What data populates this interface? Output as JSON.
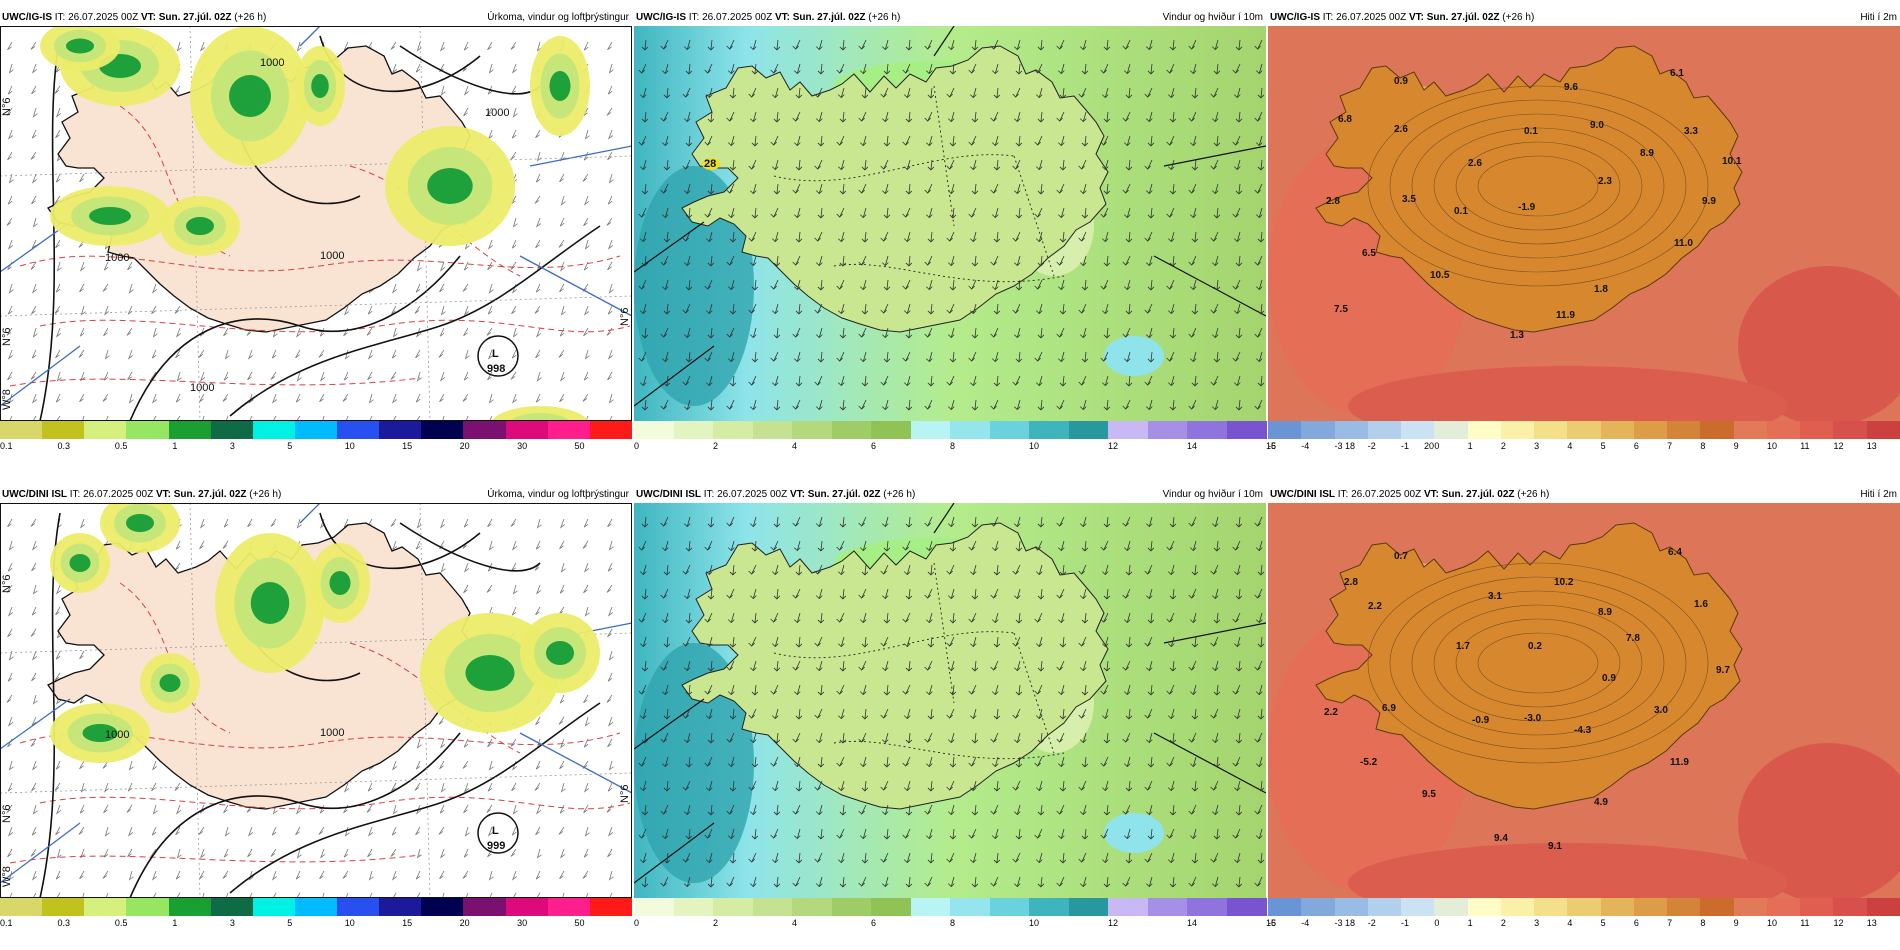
{
  "rows": [
    {
      "model_bold": "UWC/IG-IS",
      "it_label": "IT:",
      "it_value": "26.07.2025 00Z",
      "vt_label": "VT:",
      "vt_value": "Sun. 27.júl. 02Z",
      "lead": "(+26 h)",
      "precip_title": "Úrkoma, vindur og loftþrýstingur",
      "wind_title": "Vindur og hviður í 10m",
      "temp_title": "Hiti í 2m",
      "low_label": "L",
      "low_pressure": "998",
      "isobar_labels": [
        "1000",
        "1000",
        "1000",
        "1000",
        "1000"
      ],
      "lon_labels": [
        "N°6",
        "N°6",
        "N°6",
        "W°8"
      ],
      "wind_gust_marker": "28",
      "temps": [
        "6.1",
        "0.9",
        "9.6",
        "6.8",
        "2.6",
        "0.1",
        "9.0",
        "3.3",
        "8.9",
        "10.1",
        "2.6",
        "2.3",
        "2.8",
        "3.5",
        "0.1",
        "-1.9",
        "9.9",
        "11.0",
        "6.5",
        "10.5",
        "1.8",
        "7.5",
        "11.9",
        "1.3"
      ]
    },
    {
      "model_bold": "UWC/DINI ISL",
      "it_label": "IT:",
      "it_value": "26.07.2025 00Z",
      "vt_label": "VT:",
      "vt_value": "Sun. 27.júl. 02Z",
      "lead": "(+26 h)",
      "precip_title": "Úrkoma, vindur og loftþrýstingur",
      "wind_title": "Vindur og hviður í 10m",
      "temp_title": "Hiti í 2m",
      "low_label": "L",
      "low_pressure": "999",
      "isobar_labels": [
        "1000",
        "1000"
      ],
      "lon_labels": [
        "N°6",
        "N°6",
        "N°6",
        "W°8"
      ],
      "wind_gust_marker": "",
      "temps": [
        "0.7",
        "6.4",
        "2.8",
        "3.1",
        "10.2",
        "2.2",
        "8.9",
        "1.6",
        "1.7",
        "0.2",
        "7.8",
        "9.7",
        "0.9",
        "2.2",
        "6.9",
        "-0.9",
        "-3.0",
        "-4.3",
        "3.0",
        "-5.2",
        "11.9",
        "9.5",
        "4.9",
        "9.4",
        "9.1"
      ]
    }
  ],
  "legends": {
    "precip": {
      "colors": [
        "#d8d86a",
        "#c2c21e",
        "#d6f080",
        "#96e664",
        "#1aa032",
        "#0f6a46",
        "#00f0e4",
        "#00bcff",
        "#2850f0",
        "#1a1a9a",
        "#000050",
        "#7a1070",
        "#dc0a7a",
        "#ff1e8c",
        "#ff1a1a"
      ],
      "ticks": [
        "0.1",
        "0.3",
        "0.5",
        "1",
        "3",
        "5",
        "10",
        "15",
        "20",
        "30",
        "50"
      ]
    },
    "wind_top": {
      "colors": [
        "#f2fbdc",
        "#e4f4c0",
        "#d4eca4",
        "#c4e292",
        "#b4d87e",
        "#a0cc68",
        "#90c256",
        "#b8f4f4",
        "#94e6ec",
        "#6ad2dc",
        "#40b4bc",
        "#28989e",
        "#c8b8f4",
        "#a690e6",
        "#8e74dc",
        "#7854d0"
      ],
      "ticks": [
        "0",
        "2",
        "4",
        "6",
        "8",
        "10",
        "12",
        "14",
        "16",
        "18",
        "20"
      ]
    },
    "wind_bottom": {
      "colors": [
        "#f2fbdc",
        "#e4f4c0",
        "#d4eca4",
        "#c4e292",
        "#b4d87e",
        "#a0cc68",
        "#90c256",
        "#b8f4f4",
        "#94e6ec",
        "#6ad2dc",
        "#40b4bc",
        "#28989e",
        "#c8b8f4",
        "#a690e6",
        "#8e74dc",
        "#7854d0"
      ],
      "ticks": [
        "0",
        "2",
        "4",
        "6",
        "8",
        "10",
        "12",
        "14",
        "16",
        "18"
      ]
    },
    "temp": {
      "colors": [
        "#6a94d4",
        "#82a8dc",
        "#9abce4",
        "#b2d0ec",
        "#cae2f2",
        "#e2eed8",
        "#fffcc8",
        "#faf0a8",
        "#f4e08a",
        "#eccc70",
        "#e4b45a",
        "#dc9c48",
        "#d48438",
        "#cc6c2c",
        "#e27a58",
        "#e46e56",
        "#e05e50",
        "#d8504c",
        "#cc4040"
      ],
      "ticks": [
        "-5",
        "-4",
        "-3",
        "-2",
        "-1",
        "0",
        "1",
        "2",
        "3",
        "4",
        "5",
        "6",
        "7",
        "8",
        "9",
        "10",
        "11",
        "12",
        "13"
      ]
    }
  }
}
